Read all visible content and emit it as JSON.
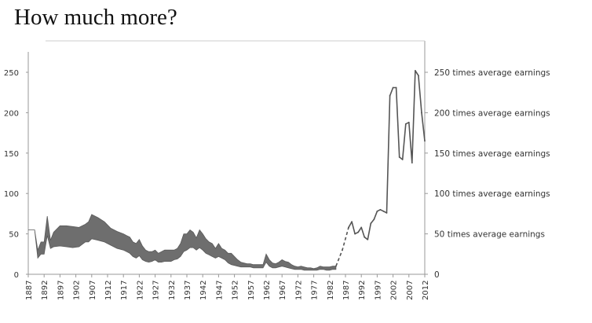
{
  "title": "How much more?",
  "chart_data": {
    "type": "area",
    "title": "How much more?",
    "xlabel": "",
    "ylabel": "",
    "xlim": [
      1887,
      2012
    ],
    "ylim": [
      0,
      275
    ],
    "grid": false,
    "colors": {
      "band": "#6e6e6e",
      "line": "#555555",
      "axis": "#999999"
    },
    "x_ticks": [
      "1887",
      "1892",
      "1897",
      "1902",
      "1907",
      "1912",
      "1917",
      "1922",
      "1927",
      "1932",
      "1937",
      "1942",
      "1947",
      "1952",
      "1957",
      "1962",
      "1967",
      "1972",
      "1977",
      "1982",
      "1987",
      "1992",
      "1997",
      "2002",
      "2007",
      "2012"
    ],
    "y_ticks_left": [
      0,
      50,
      100,
      150,
      200,
      250
    ],
    "right_axis_labels": [
      {
        "value": 0,
        "text": "0"
      },
      {
        "value": 50,
        "text": "50 times average earnings"
      },
      {
        "value": 100,
        "text": "100 times average earnings"
      },
      {
        "value": 150,
        "text": "150 times average earnings"
      },
      {
        "value": 200,
        "text": "200 times average earnings"
      },
      {
        "value": 250,
        "text": "250 times average earnings"
      }
    ],
    "series": [
      {
        "style": "band",
        "x": [
          1887,
          1889,
          1890,
          1891,
          1892,
          1893,
          1894,
          1895,
          1897,
          1899,
          1901,
          1903,
          1905,
          1906,
          1907,
          1909,
          1911,
          1913,
          1915,
          1917,
          1918,
          1919,
          1920,
          1921,
          1922,
          1923,
          1924,
          1925,
          1926,
          1927,
          1928,
          1929,
          1930,
          1932,
          1933,
          1934,
          1935,
          1936,
          1937,
          1938,
          1939,
          1940,
          1941,
          1942,
          1943,
          1944,
          1945,
          1946,
          1947,
          1948,
          1949,
          1950,
          1951,
          1952,
          1953,
          1954,
          1955,
          1956,
          1957,
          1958,
          1959,
          1960,
          1961,
          1962,
          1963,
          1964,
          1965,
          1966,
          1967,
          1968,
          1969,
          1970,
          1971,
          1972,
          1973,
          1974,
          1975,
          1976,
          1977,
          1978,
          1979,
          1980,
          1981,
          1982,
          1983,
          1984
        ],
        "upper": [
          55,
          55,
          30,
          40,
          40,
          72,
          42,
          52,
          60,
          60,
          59,
          58,
          62,
          65,
          74,
          70,
          65,
          57,
          53,
          50,
          48,
          46,
          40,
          38,
          43,
          35,
          30,
          28,
          28,
          30,
          26,
          28,
          30,
          30,
          30,
          32,
          38,
          50,
          50,
          55,
          52,
          45,
          55,
          50,
          44,
          40,
          38,
          32,
          38,
          32,
          30,
          26,
          26,
          22,
          18,
          15,
          14,
          13,
          13,
          12,
          12,
          12,
          12,
          25,
          18,
          14,
          13,
          15,
          18,
          16,
          15,
          12,
          10,
          9,
          10,
          9,
          8,
          8,
          7,
          8,
          10,
          9,
          9,
          9,
          10,
          10
        ],
        "lower": [
          55,
          55,
          20,
          25,
          25,
          48,
          32,
          34,
          35,
          34,
          33,
          34,
          40,
          40,
          44,
          42,
          40,
          36,
          32,
          30,
          28,
          26,
          22,
          20,
          23,
          18,
          16,
          15,
          16,
          18,
          15,
          15,
          16,
          16,
          18,
          19,
          22,
          28,
          30,
          33,
          33,
          30,
          33,
          30,
          26,
          24,
          22,
          20,
          22,
          20,
          18,
          14,
          12,
          11,
          10,
          9,
          9,
          9,
          9,
          8,
          8,
          8,
          8,
          15,
          10,
          8,
          8,
          9,
          10,
          9,
          8,
          7,
          6,
          6,
          6,
          5,
          5,
          5,
          5,
          5,
          6,
          6,
          5,
          5,
          6,
          6
        ]
      },
      {
        "style": "dashed",
        "x": [
          1984,
          1986,
          1988
        ],
        "y": [
          10,
          30,
          58
        ]
      },
      {
        "style": "line",
        "x": [
          1988,
          1989,
          1990,
          1991,
          1992,
          1993,
          1994,
          1995,
          1996,
          1997,
          1998,
          1999,
          2000,
          2001,
          2002,
          2003,
          2004,
          2005,
          2006,
          2007,
          2008,
          2009,
          2010,
          2011,
          2012
        ],
        "y": [
          58,
          65,
          50,
          52,
          58,
          46,
          43,
          63,
          68,
          78,
          80,
          78,
          76,
          221,
          231,
          231,
          145,
          142,
          186,
          188,
          138,
          252,
          246,
          200,
          165
        ]
      }
    ]
  }
}
